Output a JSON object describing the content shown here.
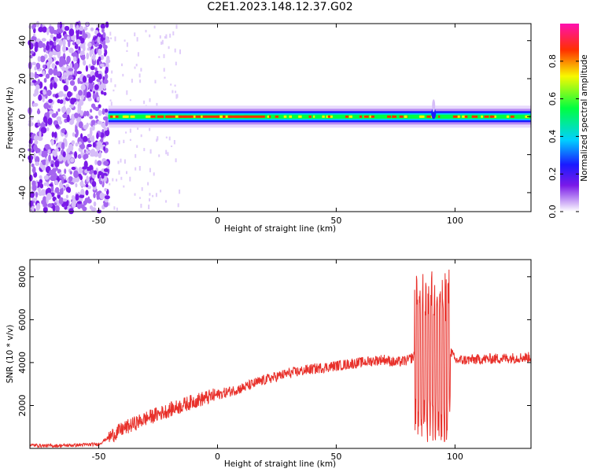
{
  "title": "C2E1.2023.148.12.37.G02",
  "chart_data": [
    {
      "type": "heatmap",
      "xlabel": "Height of straight line (km)",
      "ylabel": "Frequency (Hz)",
      "xlim": [
        -79,
        132
      ],
      "ylim": [
        -50,
        49
      ],
      "xticks": [
        -50,
        0,
        50,
        100
      ],
      "yticks": [
        -40,
        -20,
        0,
        20,
        40
      ],
      "colorbar": {
        "label": "Normalized spectral amplitude",
        "range": [
          0,
          1
        ],
        "ticks": [
          "0.0",
          "0.2",
          "0.4",
          "0.6",
          "0.8"
        ],
        "colormap": "rainbow (white → violet → blue → cyan → green → yellow → red → magenta)"
      },
      "features": [
        {
          "description": "diffuse noise across all frequencies",
          "x_range": [
            -79,
            -46
          ],
          "level": 0.05
        },
        {
          "description": "strong narrowband signal near 0 Hz",
          "x_range": [
            -46,
            132
          ],
          "frequency_center": 0,
          "bandwidth_hz": 4,
          "level": 0.9
        }
      ]
    },
    {
      "type": "line",
      "xlabel": "Height of straight line (km)",
      "ylabel": "SNR (10 * v/v)",
      "xlim": [
        -79,
        132
      ],
      "ylim": [
        0,
        8800
      ],
      "xticks": [
        -50,
        0,
        50,
        100
      ],
      "yticks": [
        2000,
        4000,
        6000,
        8000
      ],
      "series_color": "#e8302a",
      "x": [
        -79,
        -70,
        -60,
        -50,
        -46,
        -40,
        -30,
        -20,
        -10,
        0,
        10,
        20,
        30,
        40,
        50,
        60,
        70,
        75,
        80,
        83,
        86,
        90,
        93,
        96,
        98,
        100,
        110,
        120,
        132
      ],
      "y": [
        150,
        120,
        150,
        200,
        500,
        900,
        1400,
        1800,
        2200,
        2500,
        2800,
        3200,
        3500,
        3700,
        3850,
        4000,
        4150,
        4000,
        4100,
        4300,
        4200,
        4200,
        4300,
        4200,
        4600,
        4100,
        4150,
        4200,
        4250
      ],
      "oscillation": {
        "x_range": [
          83,
          98
        ],
        "min": 300,
        "max": 8600
      }
    }
  ]
}
